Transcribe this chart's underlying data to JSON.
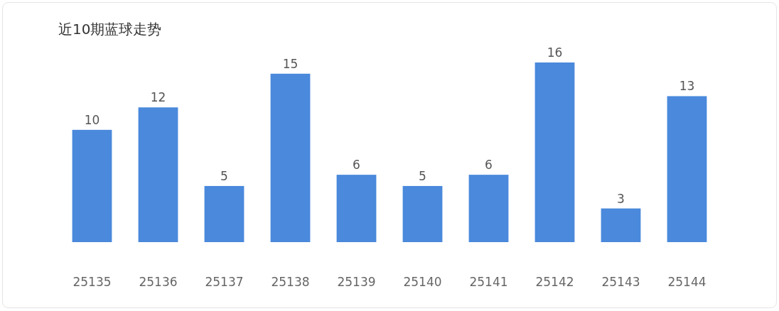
{
  "chart_data": {
    "type": "bar",
    "title": "近10期蓝球走势",
    "categories": [
      "25135",
      "25136",
      "25137",
      "25138",
      "25139",
      "25140",
      "25141",
      "25142",
      "25143",
      "25144"
    ],
    "values": [
      10,
      12,
      5,
      15,
      6,
      5,
      6,
      16,
      3,
      13
    ],
    "color": "#4a89dc",
    "data_labels": true
  }
}
